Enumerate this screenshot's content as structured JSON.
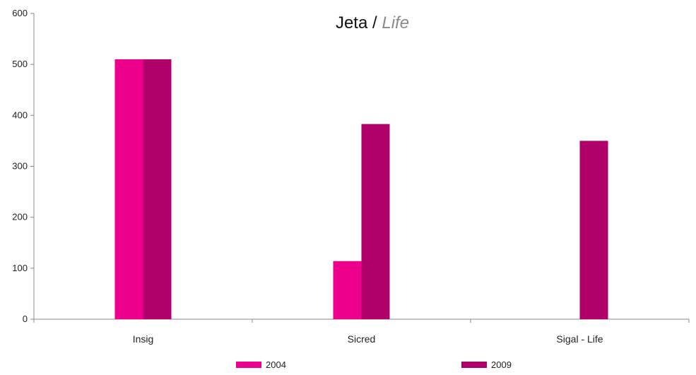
{
  "chart_data": {
    "type": "bar",
    "title": "Jeta",
    "title_separator": " / ",
    "subtitle": "Life",
    "categories": [
      "Insig",
      "Sicred",
      "Sigal - Life"
    ],
    "series": [
      {
        "name": "2004",
        "values": [
          510,
          114,
          0
        ],
        "color": "#ec008c"
      },
      {
        "name": "2009",
        "values": [
          510,
          383,
          350
        ],
        "color": "#b0006a"
      }
    ],
    "ylim": [
      0,
      600
    ],
    "yticks": [
      0,
      100,
      200,
      300,
      400,
      500,
      600
    ],
    "grid": false,
    "legend_position": "bottom"
  }
}
